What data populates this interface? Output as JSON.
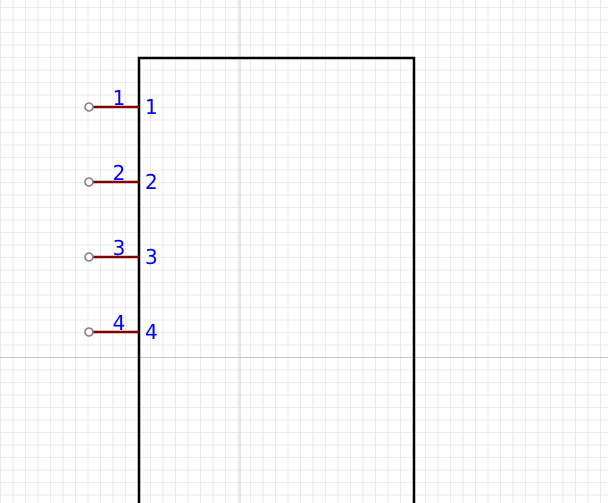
{
  "editor": {
    "colors": {
      "background": "#ffffff",
      "grid_minor": "#ebebeb",
      "grid_major": "#c8c8c8",
      "body_outline": "#000000",
      "pin_line": "#800000",
      "pin_endpoint": "#808080",
      "pin_text": "#0000ff"
    }
  },
  "symbol": {
    "pins": [
      {
        "outer_number": "1",
        "inner_name": "1"
      },
      {
        "outer_number": "2",
        "inner_name": "2"
      },
      {
        "outer_number": "3",
        "inner_name": "3"
      },
      {
        "outer_number": "4",
        "inner_name": "4"
      }
    ]
  }
}
